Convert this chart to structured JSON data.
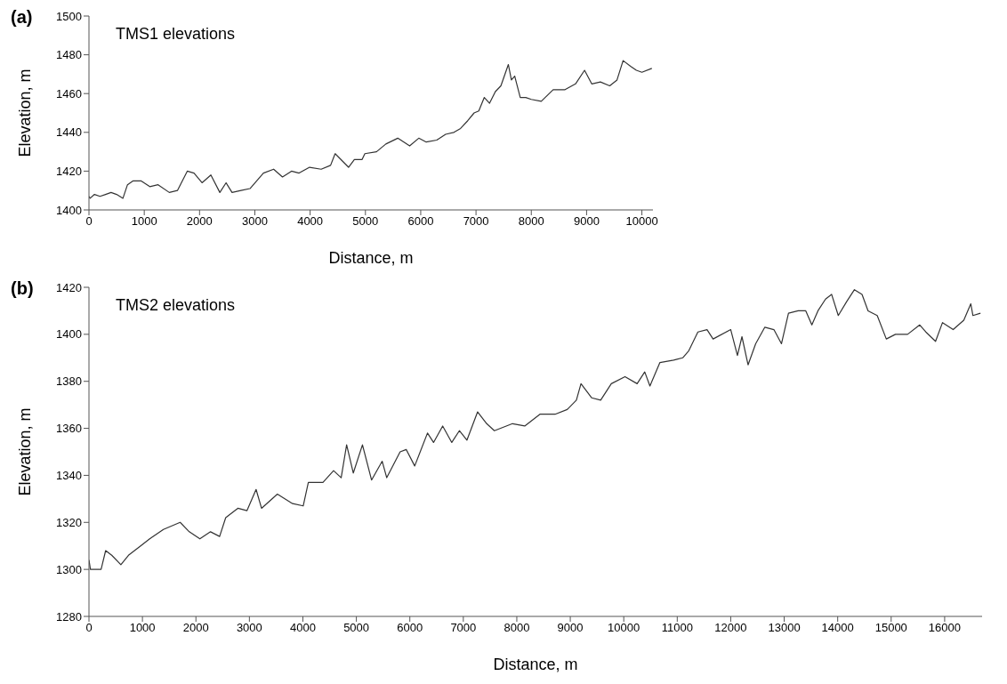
{
  "chart_data": [
    {
      "type": "line",
      "title": "(a)",
      "annotations": [
        "TMS1 elevations"
      ],
      "xlabel": "Distance, m",
      "ylabel": "Elevation, m",
      "marker": "none",
      "x": [
        0,
        21,
        100,
        200,
        300,
        400,
        500,
        615,
        697,
        800,
        940,
        1100,
        1250,
        1453,
        1600,
        1778,
        1900,
        2045,
        2205,
        2367,
        2480,
        2588,
        2750,
        2912,
        3155,
        3340,
        3500,
        3663,
        3800,
        3990,
        4200,
        4370,
        4452,
        4695,
        4800,
        4940,
        4990,
        5200,
        5370,
        5585,
        5800,
        5965,
        6100,
        6290,
        6450,
        6600,
        6720,
        6850,
        6965,
        7050,
        7150,
        7245,
        7350,
        7450,
        7585,
        7640,
        7700,
        7800,
        7900,
        8000,
        8180,
        8395,
        8610,
        8800,
        8963,
        9093,
        9250,
        9418,
        9550,
        9660,
        9800,
        9900,
        10000,
        10180
      ],
      "series": [
        {
          "color": "#333333",
          "values": [
            1407,
            1406,
            1408,
            1407,
            1408,
            1409,
            1408,
            1406,
            1413,
            1415,
            1415,
            1412,
            1413,
            1409,
            1410,
            1420,
            1419,
            1414,
            1418,
            1409,
            1414,
            1409,
            1410,
            1411,
            1419,
            1421,
            1417,
            1420,
            1419,
            1422,
            1421,
            1423,
            1429,
            1422,
            1426,
            1426,
            1429,
            1430,
            1434,
            1437,
            1433,
            1437,
            1435,
            1436,
            1439,
            1440,
            1442,
            1446,
            1450,
            1451,
            1458,
            1455,
            1461,
            1464,
            1475,
            1467,
            1469,
            1458,
            1458,
            1457,
            1456,
            1462,
            1462,
            1465,
            1472,
            1465,
            1466,
            1464,
            1467,
            1477,
            1474,
            1472,
            1471,
            1473
          ]
        }
      ],
      "xlim": [
        0,
        10200
      ],
      "xticks": [
        0,
        1000,
        2000,
        3000,
        4000,
        5000,
        6000,
        7000,
        8000,
        9000,
        10000
      ],
      "ylim": [
        1400,
        1500
      ],
      "yticks": [
        1400,
        1420,
        1440,
        1460,
        1480,
        1500
      ]
    },
    {
      "type": "line",
      "title": "(b)",
      "annotations": [
        "TMS2 elevations"
      ],
      "xlabel": "Distance, m",
      "ylabel": "Elevation, m",
      "marker": "none",
      "x": [
        0,
        28,
        227,
        312,
        426,
        597,
        739,
        966,
        1136,
        1392,
        1705,
        1875,
        2074,
        2273,
        2443,
        2557,
        2784,
        2955,
        3125,
        3227,
        3523,
        3807,
        4006,
        4102,
        4375,
        4574,
        4716,
        4818,
        4943,
        5114,
        5284,
        5483,
        5568,
        5818,
        5932,
        6091,
        6330,
        6443,
        6614,
        6784,
        6926,
        7068,
        7267,
        7437,
        7580,
        7920,
        8148,
        8432,
        8716,
        8943,
        9114,
        9200,
        9398,
        9568,
        9767,
        10023,
        10250,
        10392,
        10489,
        10676,
        10932,
        11102,
        11216,
        11386,
        11557,
        11670,
        12000,
        12125,
        12210,
        12324,
        12466,
        12636,
        12807,
        12949,
        13080,
        13261,
        13403,
        13517,
        13631,
        13773,
        13886,
        14011,
        14170,
        14313,
        14455,
        14568,
        14739,
        14909,
        15080,
        15307,
        15534,
        15648,
        15830,
        15960,
        16159,
        16358,
        16489,
        16528,
        16670
      ],
      "series": [
        {
          "color": "#333333",
          "values": [
            1304,
            1300,
            1300,
            1308,
            1306,
            1302,
            1306,
            1310,
            1313,
            1317,
            1320,
            1316,
            1313,
            1316,
            1314,
            1322,
            1326,
            1325,
            1334,
            1326,
            1332,
            1328,
            1327,
            1337,
            1337,
            1342,
            1339,
            1353,
            1341,
            1353,
            1338,
            1346,
            1339,
            1350,
            1351,
            1344,
            1358,
            1354,
            1361,
            1354,
            1359,
            1355,
            1367,
            1362,
            1359,
            1362,
            1361,
            1366,
            1366,
            1368,
            1372,
            1379,
            1373,
            1372,
            1379,
            1382,
            1379,
            1384,
            1378,
            1388,
            1389,
            1390,
            1393,
            1401,
            1402,
            1398,
            1402,
            1391,
            1399,
            1387,
            1396,
            1403,
            1402,
            1396,
            1409,
            1410,
            1410,
            1404,
            1410,
            1415,
            1417,
            1408,
            1414,
            1419,
            1417,
            1410,
            1408,
            1398,
            1400,
            1400,
            1404,
            1401,
            1397,
            1405,
            1402,
            1406,
            1413,
            1408,
            1409
          ]
        }
      ],
      "xlim": [
        0,
        16700
      ],
      "xticks": [
        0,
        1000,
        2000,
        3000,
        4000,
        5000,
        6000,
        7000,
        8000,
        9000,
        10000,
        11000,
        12000,
        13000,
        14000,
        15000,
        16000
      ],
      "ylim": [
        1280,
        1420
      ],
      "yticks": [
        1280,
        1300,
        1320,
        1340,
        1360,
        1380,
        1400,
        1420
      ]
    }
  ]
}
